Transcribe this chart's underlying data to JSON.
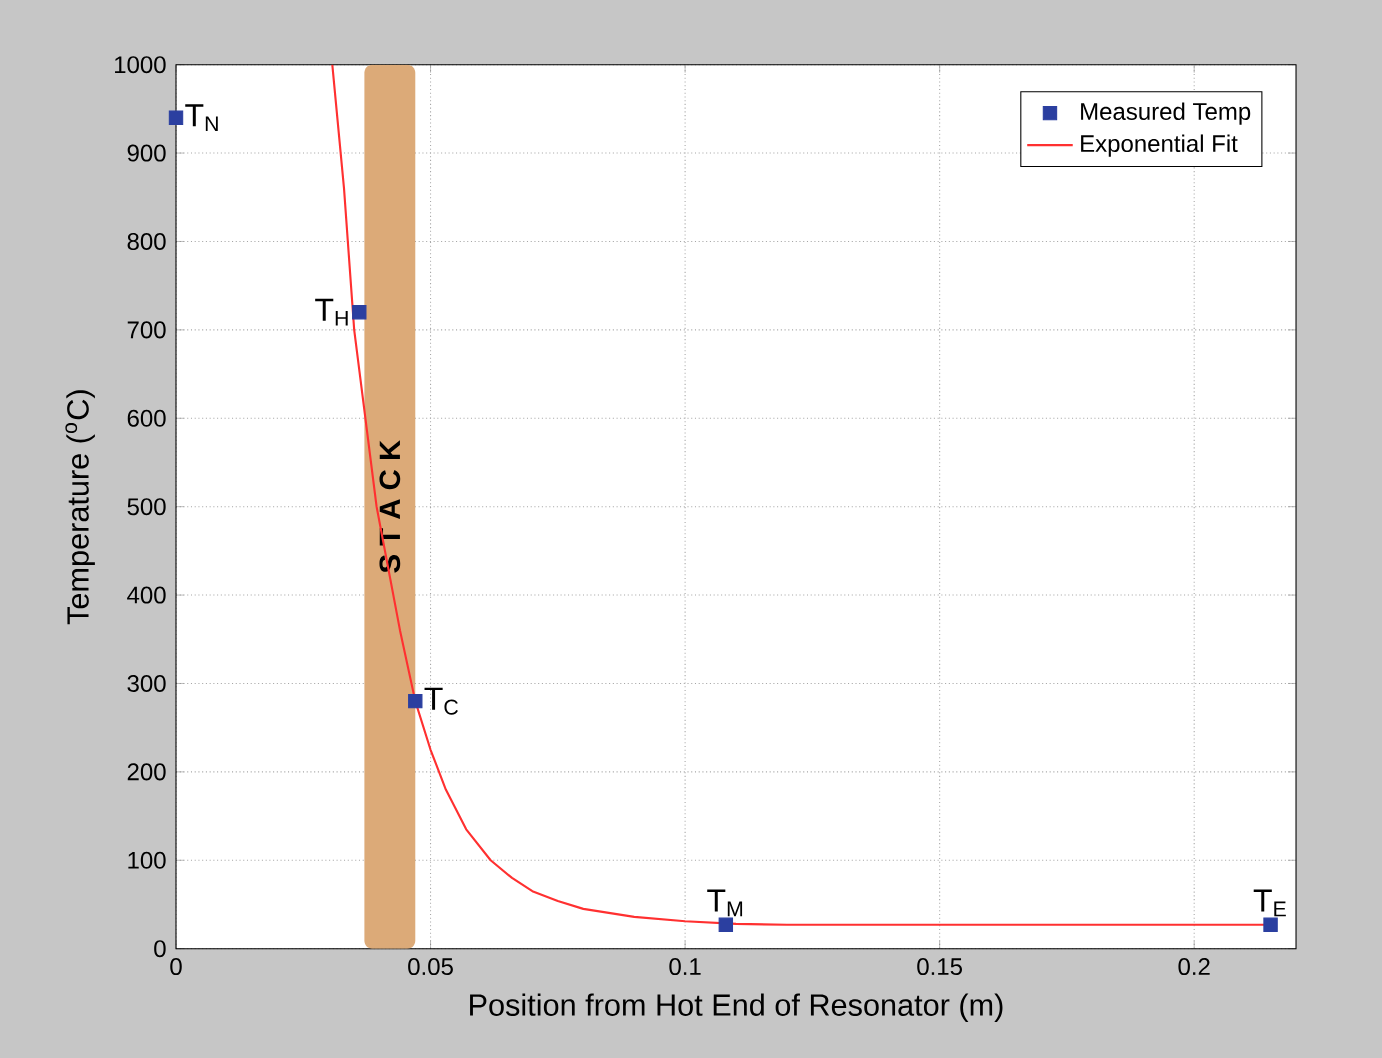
{
  "chart_data": {
    "type": "scatter",
    "xlabel": "Position from Hot End of Resonator (m)",
    "ylabel": "Temperature ($^{o}$C)",
    "xlim": [
      0,
      0.22
    ],
    "xticks": [
      0,
      0.05,
      0.1,
      0.15,
      0.2
    ],
    "ylim": [
      0,
      1000
    ],
    "yticks": [
      0,
      100,
      200,
      300,
      400,
      500,
      600,
      700,
      800,
      900,
      1000
    ],
    "grid": true,
    "legend": "top right",
    "series": [
      {
        "name": "Measured Temp",
        "marker": "square",
        "color": "#2b3fa0",
        "x": [
          0,
          0.036,
          0.047,
          0.108,
          0.215
        ],
        "values": [
          940,
          720,
          280,
          27,
          27
        ]
      },
      {
        "name": "Exponential Fit",
        "type": "line",
        "color": "#ff3030",
        "x": [
          0.0307,
          0.033,
          0.035,
          0.0394,
          0.044,
          0.047,
          0.05,
          0.053,
          0.057,
          0.0618,
          0.066,
          0.07,
          0.075,
          0.08,
          0.09,
          0.1,
          0.11,
          0.12,
          0.15,
          0.2,
          0.215
        ],
        "values": [
          1000,
          860,
          700,
          500,
          360,
          280,
          225,
          180,
          135,
          100,
          80,
          65,
          54,
          45,
          36,
          31,
          28,
          27,
          27,
          27,
          27
        ]
      }
    ],
    "bands": [
      {
        "axis": "x",
        "from": 0.037,
        "to": 0.047,
        "label": "S T A C K",
        "color": "#dcaa78"
      }
    ],
    "annotations": [
      {
        "text": "T$_{N}$",
        "x": 0,
        "y": 940
      },
      {
        "text": "T$_{H}$",
        "x": 0.036,
        "y": 720
      },
      {
        "text": "T$_{C}$",
        "x": 0.047,
        "y": 280
      },
      {
        "text": "T$_{M}$",
        "x": 0.108,
        "y": 27
      },
      {
        "text": "T$_{E}$",
        "x": 0.215,
        "y": 27
      }
    ]
  }
}
